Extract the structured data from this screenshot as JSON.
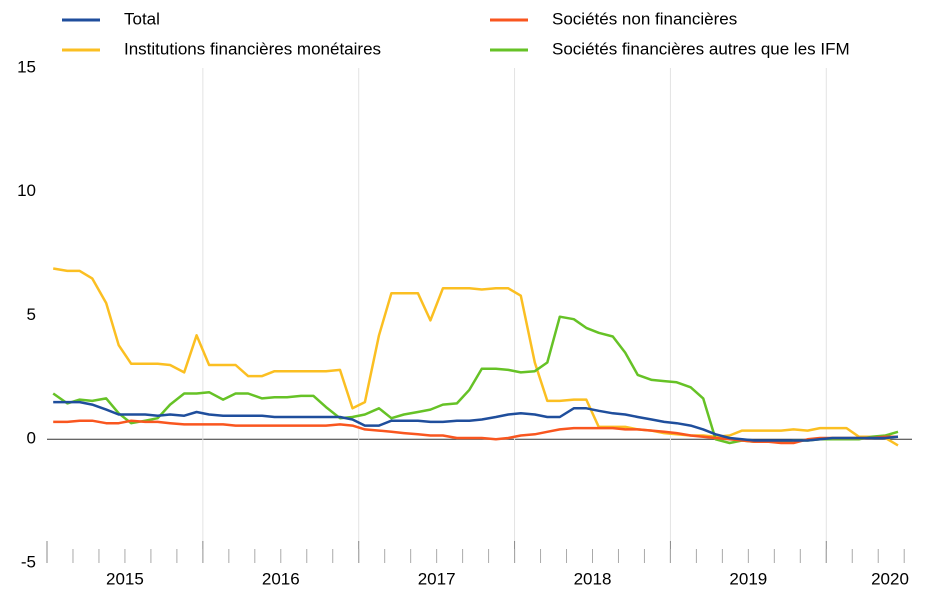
{
  "chart_data": {
    "type": "line",
    "x": [
      2015.04,
      2015.13,
      2015.21,
      2015.29,
      2015.38,
      2015.46,
      2015.54,
      2015.63,
      2015.71,
      2015.79,
      2015.88,
      2015.96,
      2016.04,
      2016.13,
      2016.21,
      2016.29,
      2016.38,
      2016.46,
      2016.54,
      2016.63,
      2016.71,
      2016.79,
      2016.88,
      2016.96,
      2017.04,
      2017.13,
      2017.21,
      2017.29,
      2017.38,
      2017.46,
      2017.54,
      2017.63,
      2017.71,
      2017.79,
      2017.88,
      2017.96,
      2018.04,
      2018.13,
      2018.21,
      2018.29,
      2018.38,
      2018.46,
      2018.54,
      2018.63,
      2018.71,
      2018.79,
      2018.88,
      2018.96,
      2019.04,
      2019.13,
      2019.21,
      2019.29,
      2019.38,
      2019.46,
      2019.54,
      2019.63,
      2019.71,
      2019.79,
      2019.88,
      2019.96,
      2020.04,
      2020.13,
      2020.21,
      2020.29,
      2020.38,
      2020.46
    ],
    "series": [
      {
        "name": "Total",
        "color": "#1f4e9c",
        "values": [
          1.5,
          1.5,
          1.5,
          1.4,
          1.2,
          1.0,
          1.0,
          1.0,
          0.95,
          1.0,
          0.95,
          1.1,
          1.0,
          0.95,
          0.95,
          0.95,
          0.95,
          0.9,
          0.9,
          0.9,
          0.9,
          0.9,
          0.9,
          0.8,
          0.55,
          0.55,
          0.75,
          0.75,
          0.75,
          0.7,
          0.7,
          0.75,
          0.75,
          0.8,
          0.9,
          1.0,
          1.05,
          1.0,
          0.9,
          0.9,
          1.25,
          1.25,
          1.15,
          1.05,
          1.0,
          0.9,
          0.8,
          0.7,
          0.65,
          0.55,
          0.4,
          0.2,
          0.05,
          0.0,
          -0.05,
          -0.05,
          -0.05,
          -0.05,
          -0.05,
          0.0,
          0.05,
          0.05,
          0.05,
          0.05,
          0.05,
          0.1
        ]
      },
      {
        "name": "Sociétés non financières",
        "color": "#f9561f",
        "values": [
          0.7,
          0.7,
          0.75,
          0.75,
          0.65,
          0.65,
          0.75,
          0.7,
          0.7,
          0.65,
          0.6,
          0.6,
          0.6,
          0.6,
          0.55,
          0.55,
          0.55,
          0.55,
          0.55,
          0.55,
          0.55,
          0.55,
          0.6,
          0.55,
          0.4,
          0.35,
          0.3,
          0.25,
          0.2,
          0.15,
          0.15,
          0.05,
          0.05,
          0.05,
          0.0,
          0.05,
          0.15,
          0.2,
          0.3,
          0.4,
          0.45,
          0.45,
          0.45,
          0.45,
          0.4,
          0.4,
          0.35,
          0.3,
          0.25,
          0.15,
          0.1,
          0.05,
          0.0,
          -0.05,
          -0.1,
          -0.1,
          -0.15,
          -0.15,
          0.0,
          0.05,
          0.05,
          0.05,
          0.05,
          0.05,
          0.1,
          0.1
        ]
      },
      {
        "name": "Institutions financières monétaires",
        "color": "#fbbf22",
        "values": [
          6.9,
          6.8,
          6.8,
          6.5,
          5.5,
          3.8,
          3.05,
          3.05,
          3.05,
          3.0,
          2.7,
          4.2,
          3.0,
          3.0,
          3.0,
          2.55,
          2.55,
          2.75,
          2.75,
          2.75,
          2.75,
          2.75,
          2.8,
          1.25,
          1.5,
          4.2,
          5.9,
          5.9,
          5.9,
          4.8,
          6.1,
          6.1,
          6.1,
          6.05,
          6.1,
          6.1,
          5.8,
          3.1,
          1.55,
          1.55,
          1.6,
          1.6,
          0.5,
          0.5,
          0.5,
          0.4,
          0.35,
          0.25,
          0.2,
          0.15,
          0.15,
          0.1,
          0.15,
          0.35,
          0.35,
          0.35,
          0.35,
          0.4,
          0.35,
          0.45,
          0.45,
          0.45,
          0.1,
          0.1,
          0.05,
          -0.25
        ]
      },
      {
        "name": "Sociétés financières autres que les IFM",
        "color": "#66c226",
        "values": [
          1.85,
          1.45,
          1.6,
          1.55,
          1.65,
          1.05,
          0.65,
          0.75,
          0.85,
          1.4,
          1.85,
          1.85,
          1.9,
          1.6,
          1.85,
          1.85,
          1.65,
          1.7,
          1.7,
          1.75,
          1.75,
          1.3,
          0.85,
          0.9,
          1.0,
          1.25,
          0.85,
          1.0,
          1.1,
          1.2,
          1.4,
          1.45,
          2.0,
          2.85,
          2.85,
          2.8,
          2.7,
          2.75,
          3.1,
          4.95,
          4.85,
          4.5,
          4.3,
          4.15,
          3.5,
          2.6,
          2.4,
          2.35,
          2.3,
          2.1,
          1.65,
          0.0,
          -0.15,
          -0.05,
          -0.1,
          -0.1,
          -0.1,
          -0.05,
          -0.05,
          0.0,
          0.0,
          0.0,
          0.0,
          0.1,
          0.15,
          0.3
        ]
      }
    ],
    "xlim": [
      2015,
      2020.55
    ],
    "xticks": [
      2015,
      2016,
      2017,
      2018,
      2019,
      2020
    ],
    "ylim": [
      -5,
      15
    ],
    "yticks": [
      -5,
      0,
      5,
      10,
      15
    ],
    "grid": true,
    "legend": "top"
  }
}
